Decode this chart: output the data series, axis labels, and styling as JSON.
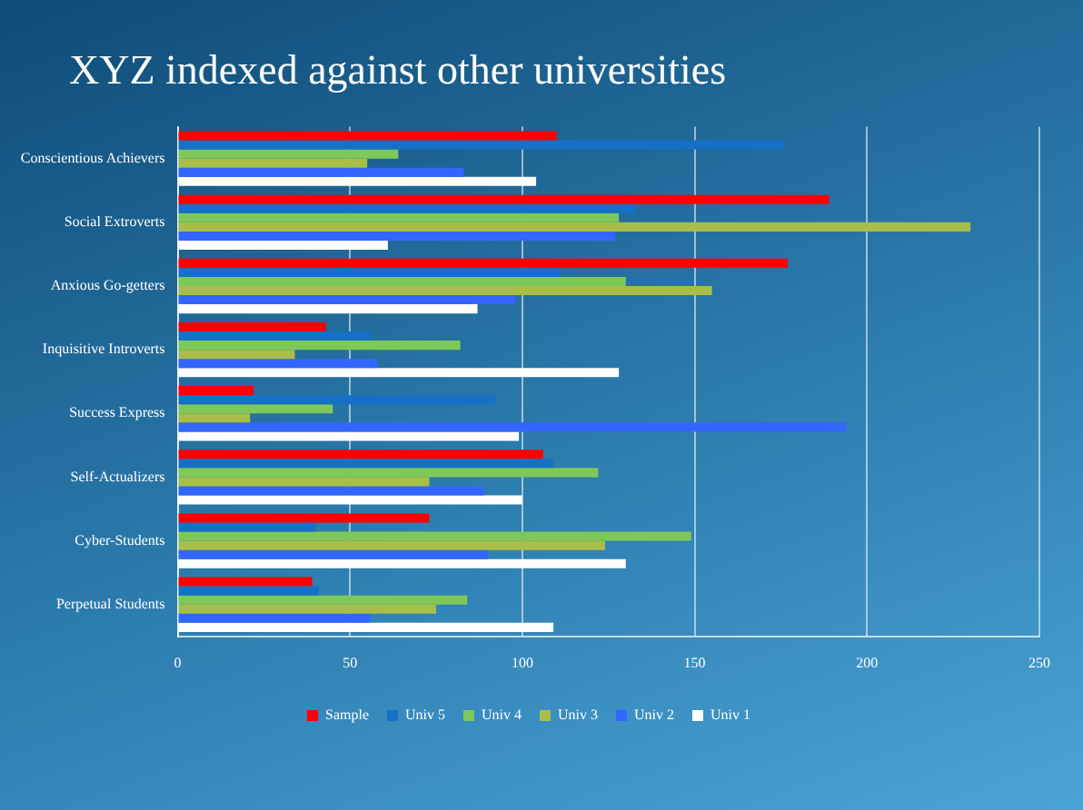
{
  "chart_data": {
    "type": "bar",
    "orientation": "horizontal",
    "title": "XYZ indexed against other universities",
    "categories": [
      "Conscientious Achievers",
      "Social Extroverts",
      "Anxious Go-getters",
      "Inquisitive Introverts",
      "Success Express",
      "Self-Actualizers",
      "Cyber-Students",
      "Perpetual Students"
    ],
    "series": [
      {
        "name": "Sample",
        "color": "#ff0000",
        "values": [
          110,
          189,
          177,
          43,
          22,
          106,
          73,
          39
        ]
      },
      {
        "name": "Univ 5",
        "color": "#1570c8",
        "values": [
          176,
          133,
          111,
          56,
          92,
          109,
          40,
          41
        ]
      },
      {
        "name": "Univ 4",
        "color": "#7ec85a",
        "values": [
          64,
          128,
          130,
          82,
          45,
          122,
          149,
          84
        ]
      },
      {
        "name": "Univ 3",
        "color": "#a8be48",
        "values": [
          55,
          230,
          155,
          34,
          21,
          73,
          124,
          75
        ]
      },
      {
        "name": "Univ 2",
        "color": "#3366ff",
        "values": [
          83,
          127,
          98,
          58,
          194,
          89,
          90,
          56
        ]
      },
      {
        "name": "Univ 1",
        "color": "#ffffff",
        "values": [
          104,
          61,
          87,
          128,
          99,
          100,
          130,
          109
        ]
      }
    ],
    "xlim": [
      0,
      250
    ],
    "xticks": [
      0,
      50,
      100,
      150,
      200,
      250
    ],
    "grid": "x",
    "legend": "bottom"
  }
}
